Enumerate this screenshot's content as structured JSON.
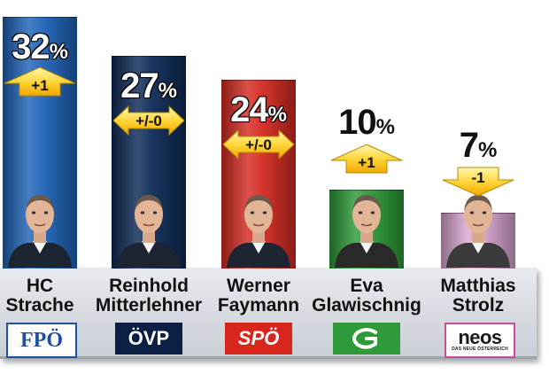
{
  "chart_data": {
    "type": "bar",
    "categories": [
      "HC Strache",
      "Reinhold Mitterlehner",
      "Werner Faymann",
      "Eva Glawischnig",
      "Matthias Strolz"
    ],
    "values": [
      32,
      27,
      24,
      10,
      7
    ],
    "ylim": [
      0,
      33
    ],
    "grid": false,
    "percent_sign": "%",
    "parties": [
      {
        "first": "HC",
        "last": "Strache",
        "logo": "FPÖ",
        "value": 32,
        "change": "+1",
        "direction": "up",
        "color": "#1e63b8"
      },
      {
        "first": "Reinhold",
        "last": "Mitterlehner",
        "logo": "ÖVP",
        "value": 27,
        "change": "+/-0",
        "direction": "both",
        "color": "#0d2a57"
      },
      {
        "first": "Werner",
        "last": "Faymann",
        "logo": "SPÖ",
        "value": 24,
        "change": "+/-0",
        "direction": "both",
        "color": "#d52a22"
      },
      {
        "first": "Eva",
        "last": "Glawischnig",
        "logo": "",
        "value": 10,
        "change": "+1",
        "direction": "up",
        "color": "#2c9a37"
      },
      {
        "first": "Matthias",
        "last": "Strolz",
        "logo": "neos",
        "logo_sub": "DAS NEUE ÖSTERREICH",
        "value": 7,
        "change": "-1",
        "direction": "down",
        "color": "#d8a6cf"
      }
    ]
  }
}
